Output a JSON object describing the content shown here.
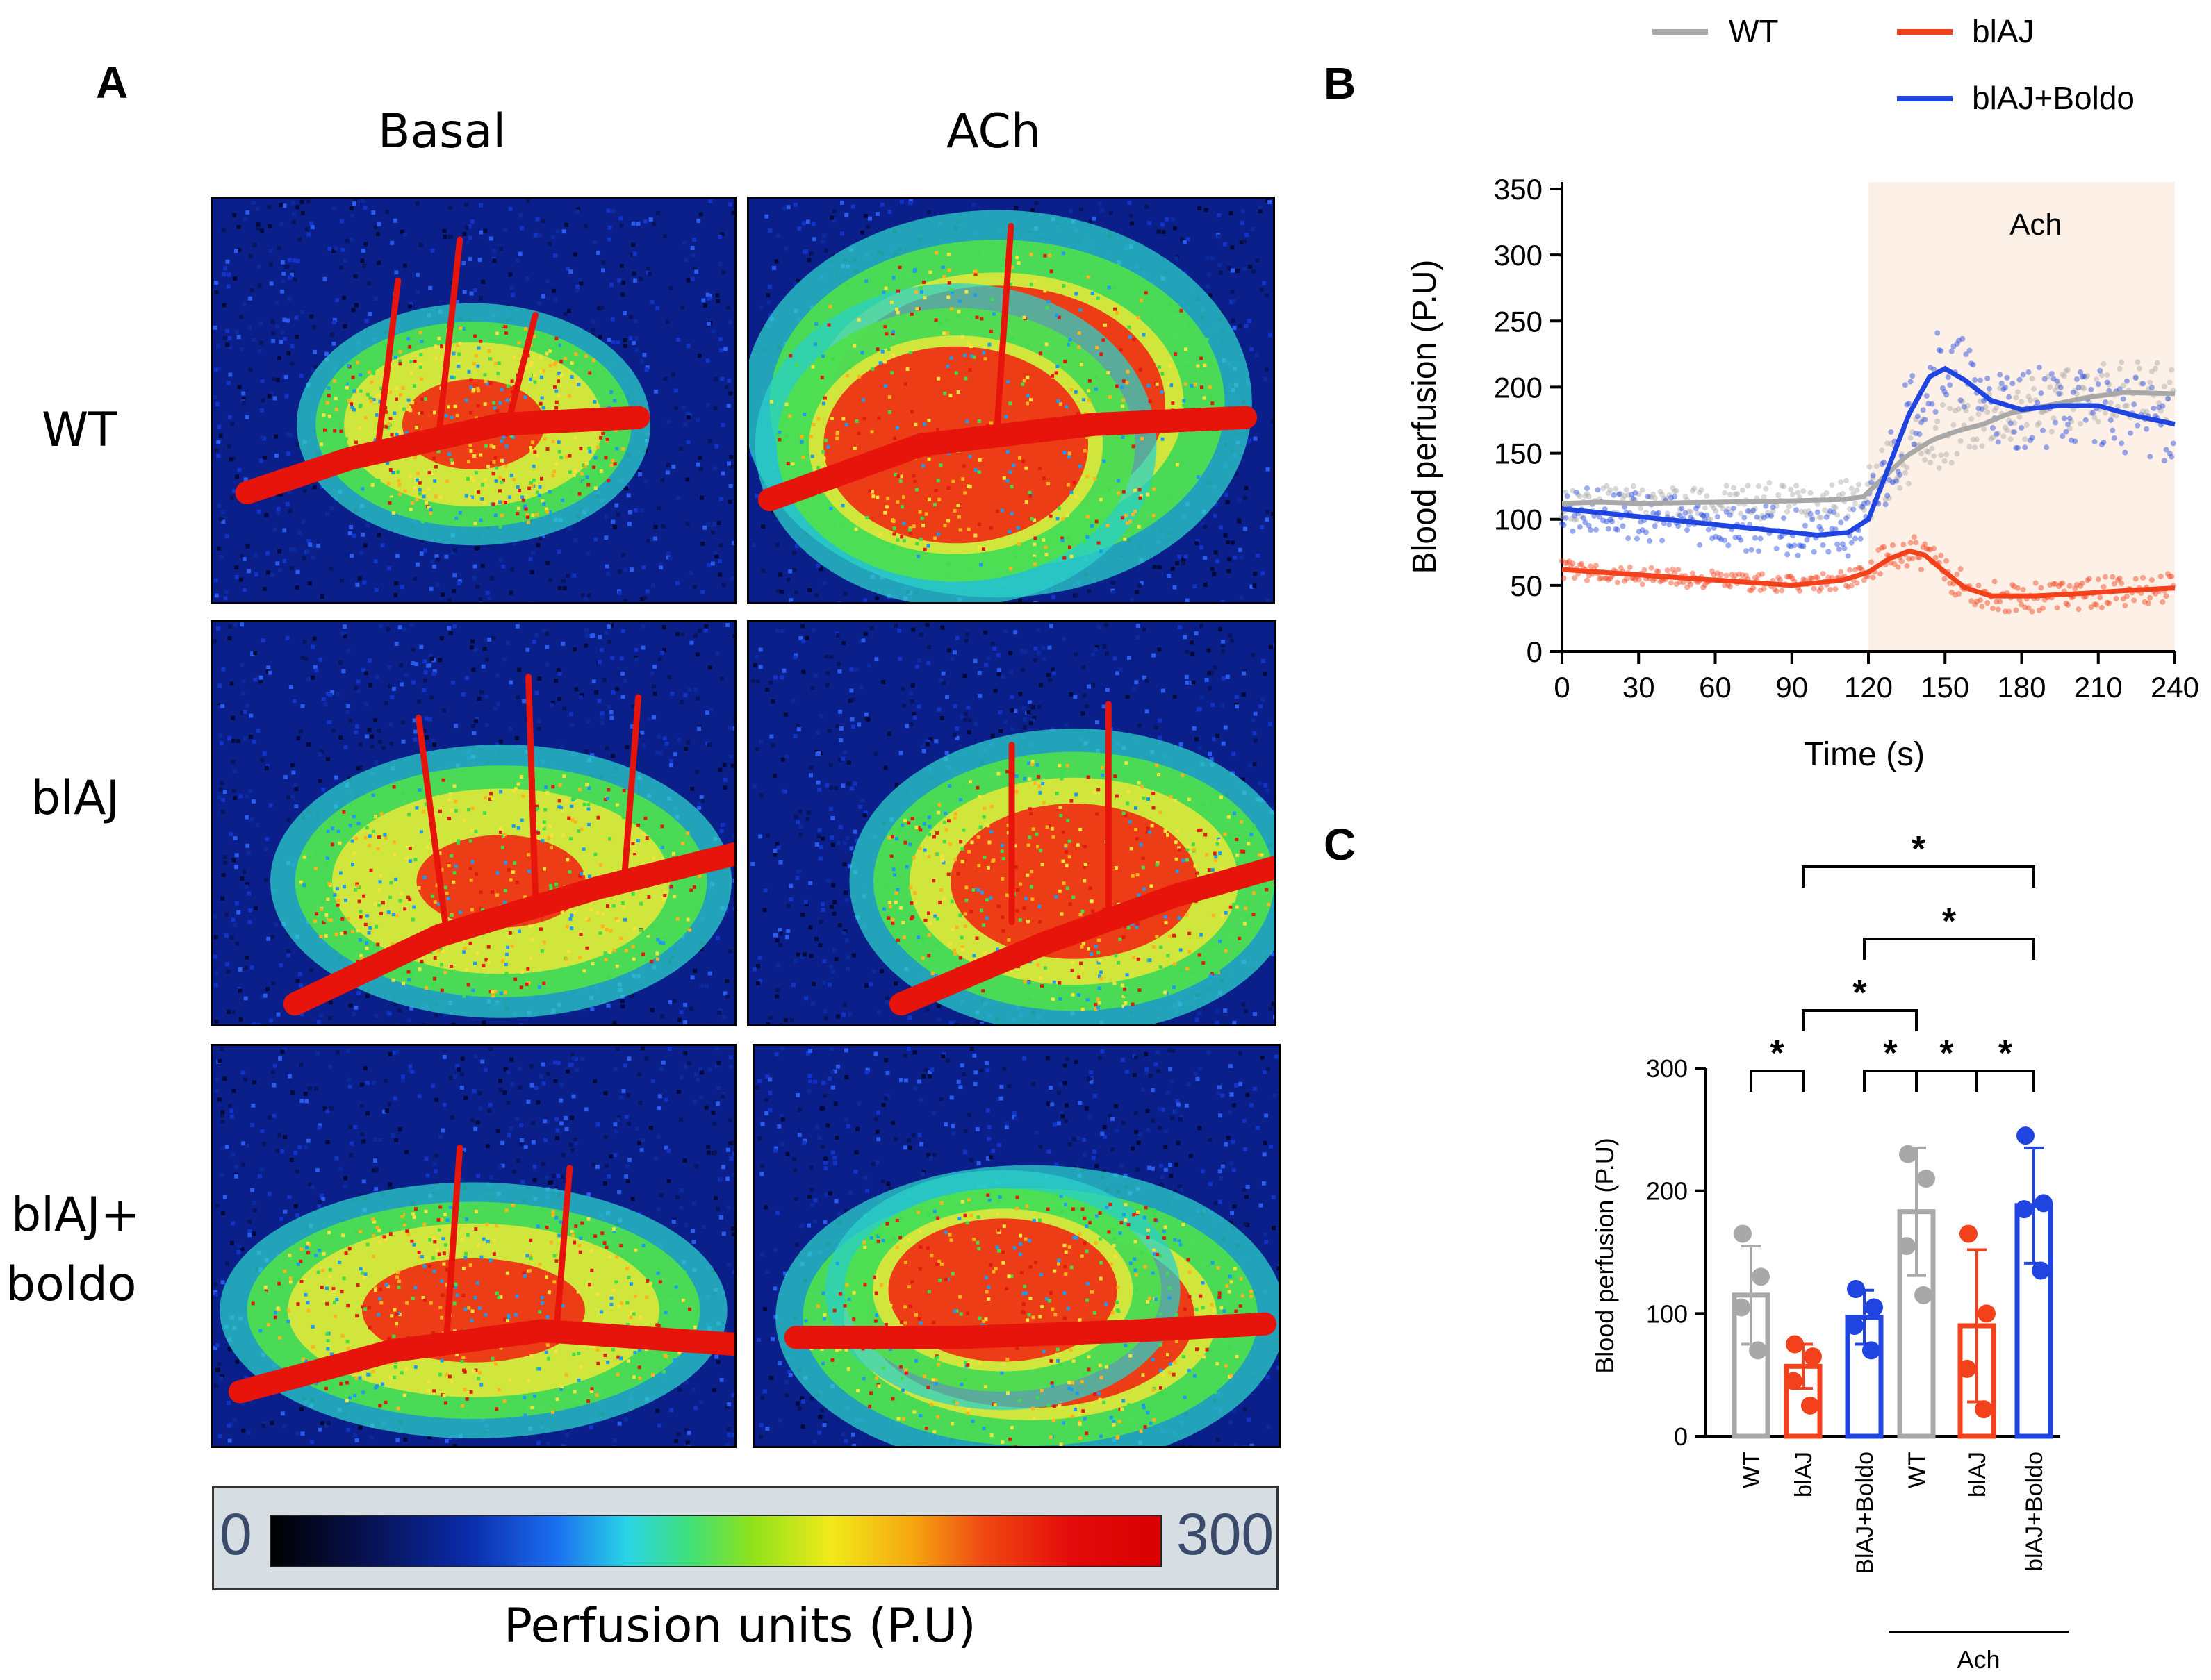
{
  "panel_a": {
    "letter": "A",
    "col_basal": "Basal",
    "col_ach": "ACh",
    "row_labels": [
      "WT",
      "blAJ",
      "blAJ+",
      "boldo"
    ],
    "colorbar": {
      "min": "0",
      "max": "300",
      "label": "Perfusion units (P.U)"
    },
    "images": [
      {
        "name": "wt-basal",
        "intensity": 0.55
      },
      {
        "name": "wt-ach",
        "intensity": 0.9
      },
      {
        "name": "blaj-basal",
        "intensity": 0.5
      },
      {
        "name": "blaj-ach",
        "intensity": 0.75
      },
      {
        "name": "blaj-boldo-basal",
        "intensity": 0.6
      },
      {
        "name": "blaj-boldo-ach",
        "intensity": 0.88
      }
    ]
  },
  "colors": {
    "WT": "#a8a8a8",
    "blAJ": "#f2411b",
    "blAJ+Boldo": "#1f44e0",
    "ach_shade": "#fdf0e6"
  },
  "chart_data": [
    {
      "id": "B",
      "type": "scatter",
      "letter": "B",
      "ylabel": "Blood perfusion (P.U)",
      "xlabel": "Time (s)",
      "xlim": [
        0,
        240
      ],
      "ylim": [
        0,
        350
      ],
      "xticks": [
        "0",
        "30",
        "60",
        "90",
        "120",
        "150",
        "180",
        "210",
        "240"
      ],
      "yticks": [
        "0",
        "50",
        "100",
        "150",
        "200",
        "250",
        "300",
        "350"
      ],
      "shaded_region": {
        "x_start": 120,
        "x_end": 240,
        "label": "Ach"
      },
      "legend": [
        "WT",
        "blAJ",
        "blAJ+Boldo"
      ],
      "series": [
        {
          "name": "WT",
          "smooth": [
            [
              0,
              112
            ],
            [
              15,
              113
            ],
            [
              30,
              112
            ],
            [
              60,
              113
            ],
            [
              90,
              114
            ],
            [
              110,
              115
            ],
            [
              118,
              117
            ],
            [
              125,
              130
            ],
            [
              135,
              148
            ],
            [
              145,
              160
            ],
            [
              155,
              167
            ],
            [
              165,
              172
            ],
            [
              175,
              180
            ],
            [
              190,
              186
            ],
            [
              205,
              192
            ],
            [
              220,
              196
            ],
            [
              240,
              195
            ]
          ],
          "noise": 14
        },
        {
          "name": "blAJ",
          "smooth": [
            [
              0,
              62
            ],
            [
              30,
              58
            ],
            [
              60,
              54
            ],
            [
              90,
              50
            ],
            [
              110,
              54
            ],
            [
              120,
              60
            ],
            [
              128,
              70
            ],
            [
              136,
              76
            ],
            [
              142,
              73
            ],
            [
              150,
              60
            ],
            [
              158,
              48
            ],
            [
              168,
              42
            ],
            [
              185,
              42
            ],
            [
              205,
              44
            ],
            [
              220,
              46
            ],
            [
              240,
              48
            ]
          ],
          "noise": 7
        },
        {
          "name": "blAJ+Boldo",
          "smooth": [
            [
              0,
              108
            ],
            [
              20,
              104
            ],
            [
              40,
              100
            ],
            [
              60,
              96
            ],
            [
              80,
              92
            ],
            [
              100,
              88
            ],
            [
              112,
              90
            ],
            [
              120,
              100
            ],
            [
              128,
              140
            ],
            [
              136,
              180
            ],
            [
              144,
              208
            ],
            [
              150,
              214
            ],
            [
              158,
              205
            ],
            [
              168,
              190
            ],
            [
              180,
              183
            ],
            [
              195,
              186
            ],
            [
              210,
              186
            ],
            [
              225,
              178
            ],
            [
              240,
              172
            ]
          ],
          "noise": 18
        }
      ]
    },
    {
      "id": "C",
      "type": "bar",
      "letter": "C",
      "ylabel": "Blood perfusion (P.U)",
      "ylim": [
        0,
        300
      ],
      "yticks": [
        "0",
        "100",
        "200",
        "300"
      ],
      "categories": [
        "WT",
        "blAJ",
        "BlAJ+Boldo",
        "WT",
        "blAJ",
        "blAJ+Boldo"
      ],
      "series_colors": [
        "WT",
        "blAJ",
        "blAJ+Boldo",
        "WT",
        "blAJ",
        "blAJ+Boldo"
      ],
      "values": [
        115,
        57,
        97,
        183,
        90,
        188
      ],
      "errors": [
        40,
        18,
        22,
        52,
        62,
        47
      ],
      "points": [
        [
          165,
          130,
          105,
          70
        ],
        [
          75,
          65,
          45,
          25
        ],
        [
          120,
          105,
          90,
          70
        ],
        [
          230,
          210,
          155,
          115
        ],
        [
          165,
          100,
          55,
          22
        ],
        [
          245,
          190,
          185,
          135
        ]
      ],
      "group_label": "Ach",
      "group_span": [
        3,
        5
      ],
      "significance": [
        {
          "from": 0,
          "to": 1,
          "label": "*"
        },
        {
          "from": 2,
          "to": 3,
          "label": "*"
        },
        {
          "from": 3,
          "to": 4,
          "label": "*"
        },
        {
          "from": 4,
          "to": 5,
          "label": "*"
        },
        {
          "from": 1,
          "to": 3,
          "label": "*"
        },
        {
          "from": 2,
          "to": 5,
          "label": "*"
        },
        {
          "from": 1,
          "to": 5,
          "label": "*"
        }
      ]
    }
  ]
}
